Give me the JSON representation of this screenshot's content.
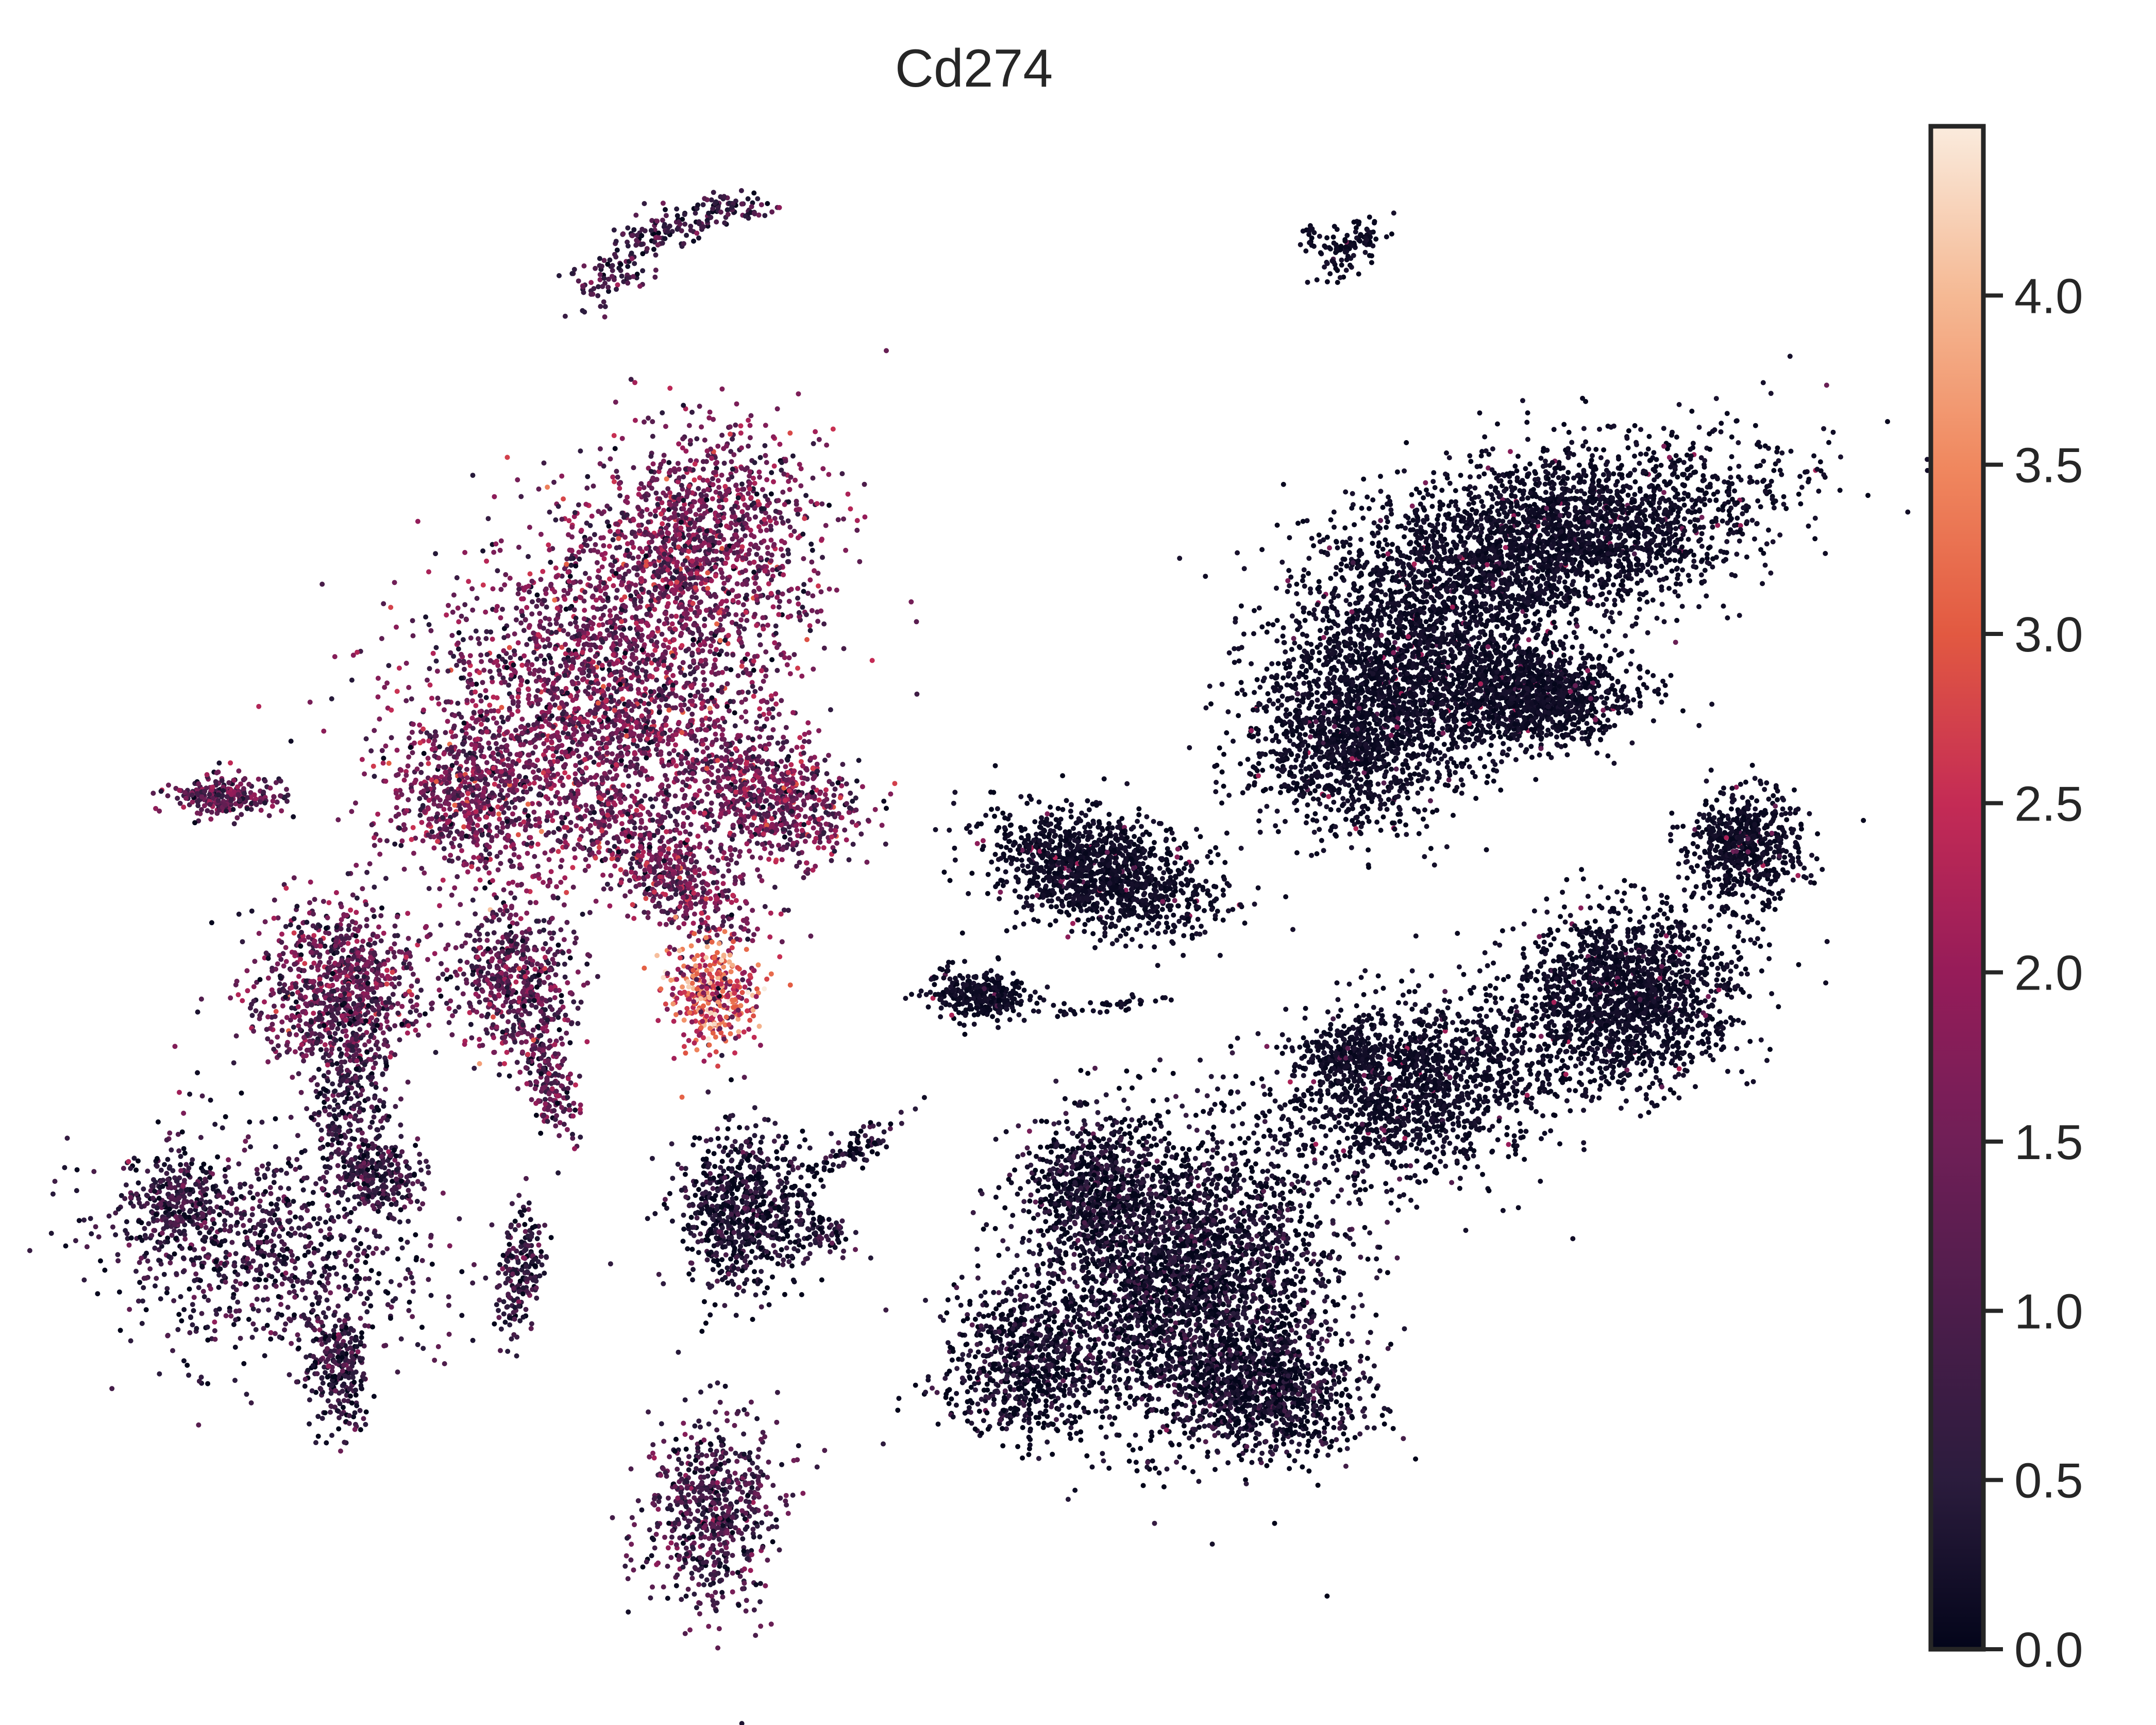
{
  "chart_data": {
    "type": "scatter",
    "title": "Cd274",
    "xlabel": "",
    "ylabel": "",
    "axes_visible": false,
    "grid": false,
    "colorbar": {
      "label": "",
      "range": [
        0.0,
        4.5
      ],
      "ticks": [
        0.0,
        0.5,
        1.0,
        1.5,
        2.0,
        2.5,
        3.0,
        3.5,
        4.0
      ],
      "tick_labels": [
        "0.0",
        "0.5",
        "1.0",
        "1.5",
        "2.0",
        "2.5",
        "3.0",
        "3.5",
        "4.0"
      ],
      "colormap": "rocket",
      "colormap_stops": [
        "#03051a",
        "#2b1c3d",
        "#4c1d4b",
        "#701f57",
        "#961c59",
        "#c42b55",
        "#e25941",
        "#f0885f",
        "#f5b994",
        "#faebdd"
      ]
    },
    "clusters": [
      {
        "id": "top-left-small",
        "mean_expression": 0.7
      },
      {
        "id": "top-right-small",
        "mean_expression": 0.05
      },
      {
        "id": "left-large",
        "mean_expression": 1.4
      },
      {
        "id": "left-lower-arm",
        "mean_expression": 1.2
      },
      {
        "id": "hotspot",
        "mean_expression": 2.8
      },
      {
        "id": "left-dispersed",
        "mean_expression": 0.6
      },
      {
        "id": "bottom-left-small",
        "mean_expression": 0.8
      },
      {
        "id": "right-upper-large",
        "mean_expression": 0.05
      },
      {
        "id": "right-upper-arm",
        "mean_expression": 0.1
      },
      {
        "id": "middle-band",
        "mean_expression": 0.08
      },
      {
        "id": "middle-small",
        "mean_expression": 0.1
      },
      {
        "id": "right-small-round",
        "mean_expression": 0.05
      },
      {
        "id": "right-lower-band",
        "mean_expression": 0.1
      },
      {
        "id": "center-round",
        "mean_expression": 0.3
      },
      {
        "id": "bottom-center-large",
        "mean_expression": 0.2
      }
    ]
  }
}
